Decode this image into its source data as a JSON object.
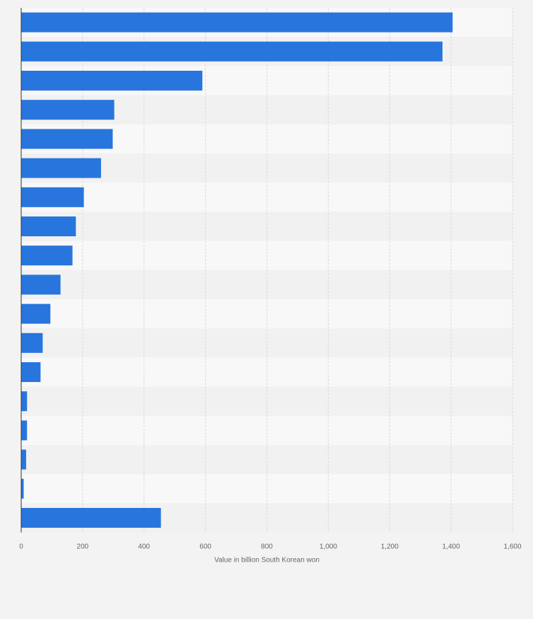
{
  "chart_data": {
    "type": "bar",
    "orientation": "horizontal",
    "categories": [
      "",
      "",
      "",
      "",
      "",
      "",
      "",
      "",
      "",
      "",
      "",
      "",
      "",
      "",
      "",
      "",
      "",
      ""
    ],
    "values": [
      1405,
      1372,
      590,
      303,
      298,
      260,
      204,
      178,
      167,
      128,
      95,
      70,
      63,
      19,
      19,
      16,
      8,
      455
    ],
    "xlabel": "Value in billion South Korean won",
    "ylabel": "",
    "xlim": [
      0,
      1600
    ],
    "xticks": [
      0,
      200,
      400,
      600,
      800,
      1000,
      1200,
      1400,
      1600
    ],
    "xtick_labels": [
      "0",
      "200",
      "400",
      "600",
      "800",
      "1,000",
      "1,200",
      "1,400",
      "1,600"
    ],
    "grid": "vertical",
    "legend": "none"
  },
  "colors": {
    "bar": "#2876dd",
    "background": "#f3f3f3",
    "plot_band_light": "#f8f8f8",
    "plot_band_dark": "#f1f1f1",
    "grid": "#d9d9d9",
    "axis": "#333333",
    "tick_text": "#666666"
  }
}
